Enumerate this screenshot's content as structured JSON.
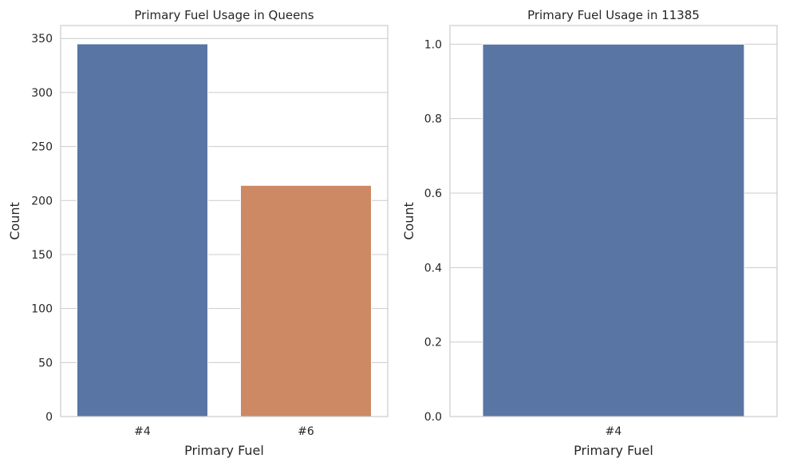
{
  "chart_data": [
    {
      "type": "bar",
      "title": "Primary Fuel Usage in Queens",
      "xlabel": "Primary Fuel",
      "ylabel": "Count",
      "categories": [
        "#4",
        "#6"
      ],
      "values": [
        345,
        214
      ],
      "colors": [
        "#5975a4",
        "#cc8963"
      ],
      "ylim": [
        0,
        362
      ],
      "yticks": [
        0,
        50,
        100,
        150,
        200,
        250,
        300,
        350
      ],
      "ytick_labels": [
        "0",
        "50",
        "100",
        "150",
        "200",
        "250",
        "300",
        "350"
      ],
      "grid": "horizontal"
    },
    {
      "type": "bar",
      "title": "Primary Fuel Usage in 11385",
      "xlabel": "Primary Fuel",
      "ylabel": "Count",
      "categories": [
        "#4"
      ],
      "values": [
        1
      ],
      "colors": [
        "#5975a4"
      ],
      "ylim": [
        0,
        1.05
      ],
      "yticks": [
        0,
        0.2,
        0.4,
        0.6,
        0.8,
        1.0
      ],
      "ytick_labels": [
        "0.0",
        "0.2",
        "0.4",
        "0.6",
        "0.8",
        "1.0"
      ],
      "grid": "horizontal"
    }
  ]
}
